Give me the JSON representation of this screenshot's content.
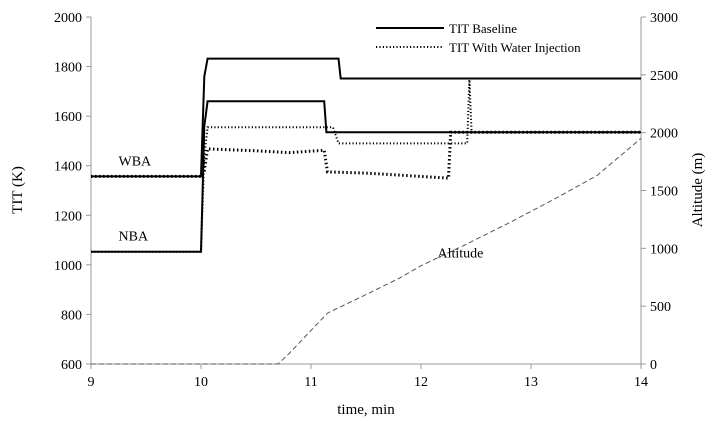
{
  "chart_data": {
    "type": "line",
    "xlabel": "time, min",
    "ylabel_left": "TIT (K)",
    "ylabel_right": "Altitude (m)",
    "xlim": [
      9,
      14
    ],
    "ylim_left": [
      600,
      2000
    ],
    "ylim_right": [
      0,
      3000
    ],
    "x_ticks": [
      "9",
      "10",
      "11",
      "12",
      "13",
      "14"
    ],
    "y_ticks_left": [
      "600",
      "800",
      "1000",
      "1200",
      "1400",
      "1600",
      "1800",
      "2000"
    ],
    "y_ticks_right": [
      "0",
      "500",
      "1000",
      "1500",
      "2000",
      "2500",
      "3000"
    ],
    "grid": false,
    "legend_position": "top-right",
    "annotations": [
      {
        "text": "WBA",
        "x": 9.25,
        "y": 1400
      },
      {
        "text": "NBA",
        "x": 9.25,
        "y": 1098
      },
      {
        "text": "Altitude",
        "x": 12.15,
        "y": 1030
      }
    ],
    "series": [
      {
        "name": "TIT Baseline",
        "axis": "left",
        "style": "solid",
        "color": "#000000",
        "legend": true,
        "points": [
          [
            9,
            1357
          ],
          [
            10,
            1357
          ],
          [
            10.03,
            1760
          ],
          [
            10.06,
            1832
          ],
          [
            11.25,
            1832
          ],
          [
            11.27,
            1752
          ],
          [
            14,
            1752
          ]
        ]
      },
      {
        "name": "TIT Baseline",
        "axis": "left",
        "style": "solid",
        "color": "#000000",
        "legend": false,
        "points": [
          [
            9,
            1053
          ],
          [
            10,
            1053
          ],
          [
            10.03,
            1560
          ],
          [
            10.06,
            1660
          ],
          [
            11.12,
            1660
          ],
          [
            11.14,
            1535
          ],
          [
            14,
            1535
          ]
        ]
      },
      {
        "name": "TIT With Water Injection",
        "axis": "left",
        "style": "dotted-fine",
        "color": "#000000",
        "legend": true,
        "points": [
          [
            9,
            1053
          ],
          [
            10,
            1053
          ],
          [
            10.03,
            1440
          ],
          [
            10.06,
            1555
          ],
          [
            11.2,
            1555
          ],
          [
            11.25,
            1490
          ],
          [
            12.42,
            1490
          ],
          [
            12.44,
            1747
          ],
          [
            12.46,
            1535
          ],
          [
            14,
            1535
          ]
        ]
      },
      {
        "name": "TIT With Water Injection",
        "axis": "left",
        "style": "dotted-heavy",
        "color": "#000000",
        "legend": false,
        "points": [
          [
            9,
            1357
          ],
          [
            10,
            1357
          ],
          [
            10.03,
            1380
          ],
          [
            10.06,
            1468
          ],
          [
            10.5,
            1460
          ],
          [
            10.8,
            1453
          ],
          [
            11.12,
            1462
          ],
          [
            11.15,
            1375
          ],
          [
            11.5,
            1370
          ],
          [
            12.25,
            1350
          ],
          [
            12.27,
            1535
          ],
          [
            14,
            1535
          ]
        ]
      },
      {
        "name": "Altitude",
        "axis": "right",
        "style": "dashed",
        "color": "#555555",
        "legend": false,
        "points": [
          [
            9,
            0
          ],
          [
            10.7,
            0
          ],
          [
            10.8,
            90
          ],
          [
            11.15,
            440
          ],
          [
            11.5,
            600
          ],
          [
            11.8,
            740
          ],
          [
            12.0,
            850
          ],
          [
            12.4,
            1030
          ],
          [
            12.8,
            1220
          ],
          [
            13.2,
            1420
          ],
          [
            13.6,
            1630
          ],
          [
            14,
            1950
          ]
        ]
      }
    ]
  }
}
